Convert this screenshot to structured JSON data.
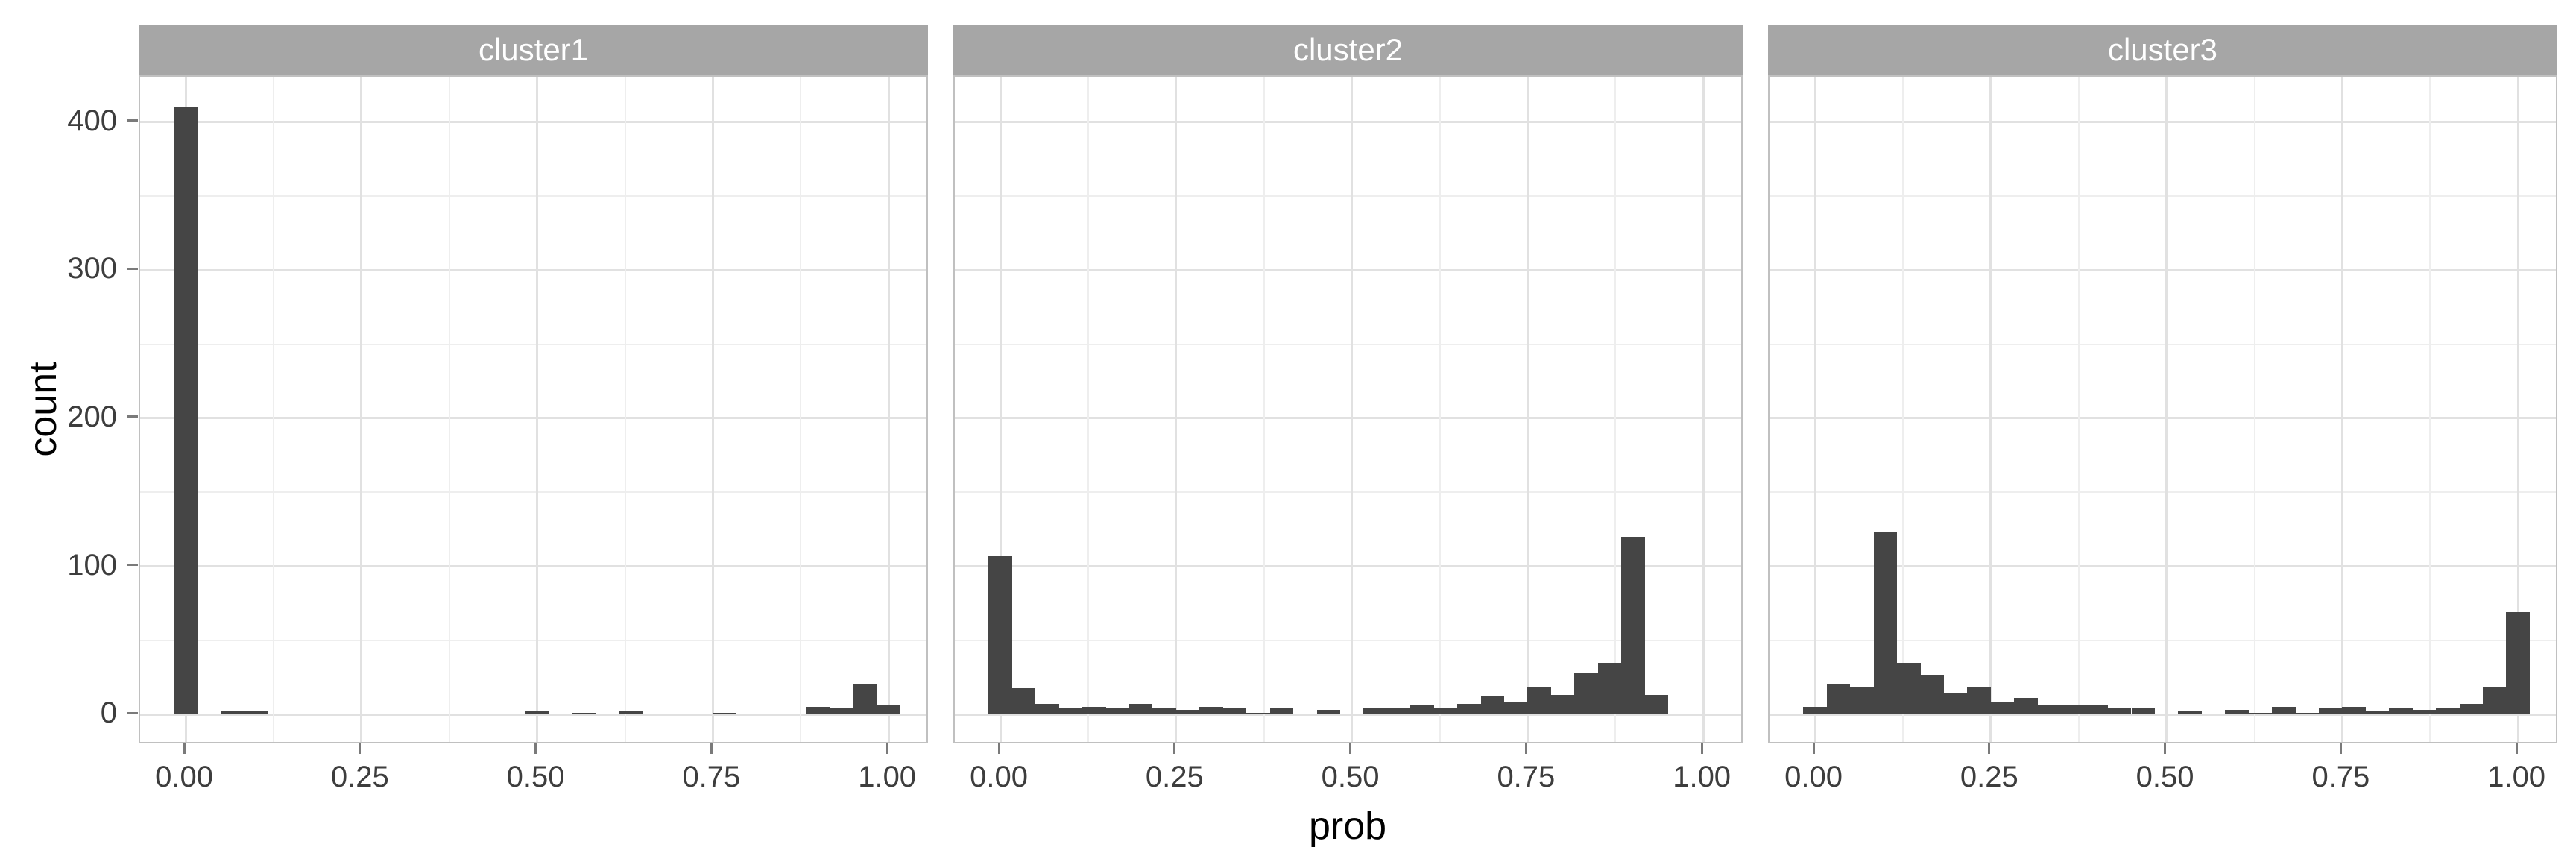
{
  "facet_labels": [
    "cluster1",
    "cluster2",
    "cluster3"
  ],
  "axes": {
    "x_title": "prob",
    "y_title": "count",
    "x_tick_labels": [
      "0.00",
      "0.25",
      "0.50",
      "0.75",
      "1.00"
    ],
    "x_tick_values": [
      0,
      0.25,
      0.5,
      0.75,
      1
    ],
    "x_minor_values": [
      0.125,
      0.375,
      0.625,
      0.875
    ],
    "y_tick_labels": [
      "0",
      "100",
      "200",
      "300",
      "400"
    ],
    "y_tick_values": [
      0,
      100,
      200,
      300,
      400
    ],
    "y_minor_values": [
      50,
      150,
      250,
      350
    ]
  },
  "colors": {
    "bar_fill": "#454545",
    "strip_fill": "#a6a6a6",
    "strip_text": "#ffffff",
    "grid_major": "#e1e1e1",
    "grid_minor": "#eeeeee",
    "panel_border": "#c0c0c0",
    "tick_mark": "#7a7a7a",
    "tick_text": "#3d3d3d",
    "axis_title_text": "#000000",
    "background": "#ffffff"
  },
  "chart_data": {
    "type": "bar",
    "subtype": "histogram",
    "facetted": true,
    "facet_variable_levels": [
      "cluster1",
      "cluster2",
      "cluster3"
    ],
    "xlabel": "prob",
    "ylabel": "count",
    "bin_width": 0.0333,
    "bin_centers": [
      0,
      0.0333,
      0.0667,
      0.1,
      0.1333,
      0.1667,
      0.2,
      0.2333,
      0.2667,
      0.3,
      0.3333,
      0.3667,
      0.4,
      0.4333,
      0.4667,
      0.5,
      0.5333,
      0.5667,
      0.6,
      0.6333,
      0.6667,
      0.7,
      0.7333,
      0.7667,
      0.8,
      0.8333,
      0.8667,
      0.9,
      0.9333,
      0.9667,
      1.0
    ],
    "series": [
      {
        "name": "cluster1",
        "values": [
          410,
          0,
          2,
          2,
          0,
          0,
          0,
          0,
          0,
          0,
          0,
          0,
          0,
          0,
          0,
          2,
          0,
          1,
          0,
          2,
          0,
          0,
          0,
          1,
          0,
          0,
          0,
          5,
          4,
          21,
          6
        ]
      },
      {
        "name": "cluster2",
        "values": [
          107,
          18,
          7,
          4,
          5,
          4,
          7,
          4,
          3,
          5,
          4,
          1,
          4,
          0,
          3,
          0,
          4,
          4,
          6,
          4,
          7,
          12,
          8,
          19,
          13,
          28,
          35,
          120,
          13,
          0,
          0
        ]
      },
      {
        "name": "cluster3",
        "values": [
          5,
          21,
          19,
          123,
          35,
          27,
          14,
          19,
          8,
          11,
          6,
          6,
          6,
          4,
          4,
          0,
          2,
          0,
          3,
          1,
          5,
          1,
          4,
          5,
          2,
          4,
          3,
          4,
          7,
          19,
          69
        ]
      }
    ],
    "xlim": [
      -0.065,
      1.065
    ],
    "ylim": [
      -20.5,
      430.5
    ],
    "grid": "major-and-minor",
    "legend": false
  }
}
